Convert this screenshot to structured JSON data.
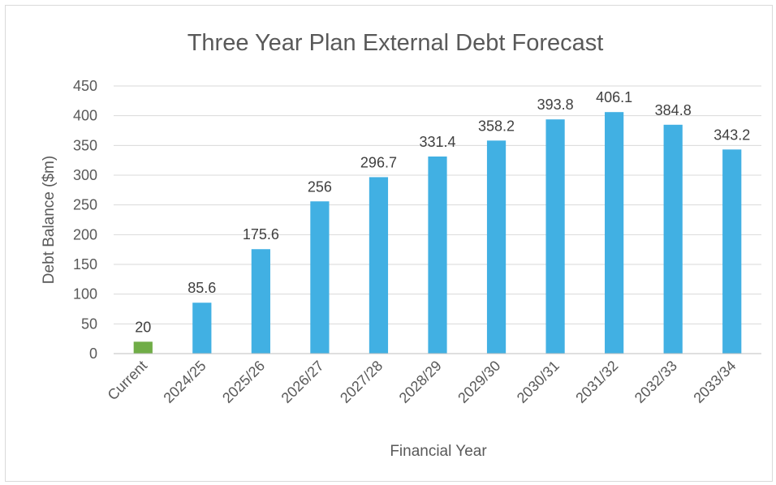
{
  "chart_data": {
    "type": "bar",
    "title": "Three Year Plan External Debt Forecast",
    "xlabel": "Financial Year",
    "ylabel": "Debt Balance ($m)",
    "categories": [
      "Current",
      "2024/25",
      "2025/26",
      "2026/27",
      "2027/28",
      "2028/29",
      "2029/30",
      "2030/31",
      "2031/32",
      "2032/33",
      "2033/34"
    ],
    "values": [
      20,
      85.6,
      175.6,
      256,
      296.7,
      331.4,
      358.2,
      393.8,
      406.1,
      384.8,
      343.2
    ],
    "data_labels": [
      "20",
      "85.6",
      "175.6",
      "256",
      "296.7",
      "331.4",
      "358.2",
      "393.8",
      "406.1",
      "384.8",
      "343.2"
    ],
    "bar_colors": [
      "#70ad47",
      "#41b0e3",
      "#41b0e3",
      "#41b0e3",
      "#41b0e3",
      "#41b0e3",
      "#41b0e3",
      "#41b0e3",
      "#41b0e3",
      "#41b0e3",
      "#41b0e3"
    ],
    "ylim": [
      0,
      450
    ],
    "yticks": [
      0,
      50,
      100,
      150,
      200,
      250,
      300,
      350,
      400,
      450
    ],
    "grid": true,
    "legend": "none"
  }
}
